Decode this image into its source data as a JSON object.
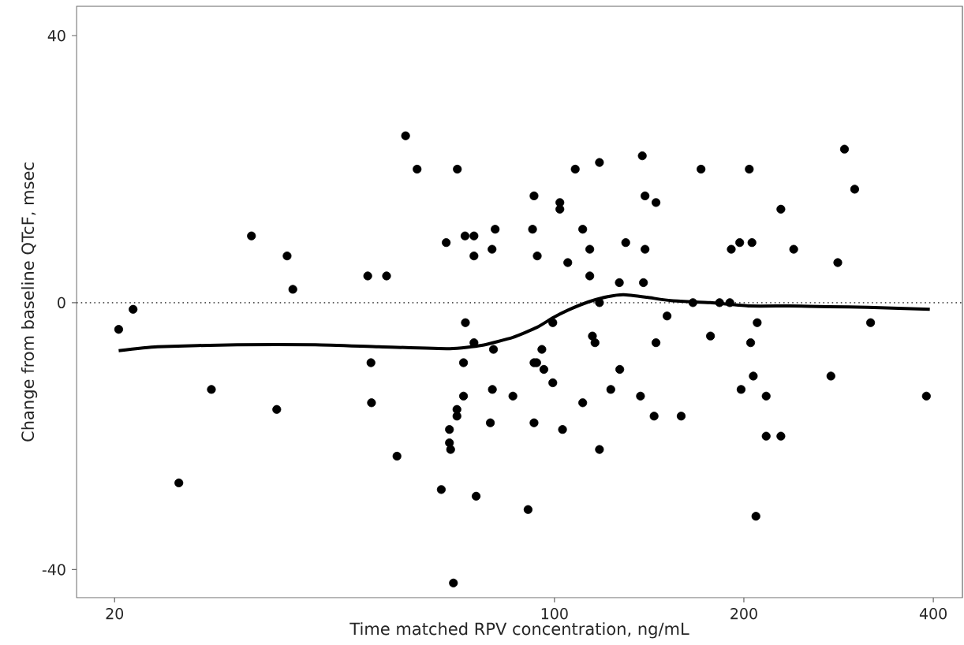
{
  "chart_data": {
    "type": "scatter",
    "xlabel": "Time matched RPV concentration, ng/mL",
    "ylabel": "Change from baseline QTcF, msec",
    "log": "x",
    "xlim": [
      17.4,
      445
    ],
    "ylim": [
      -44.2,
      44.4
    ],
    "xticks": [
      20,
      100,
      200,
      400
    ],
    "yticks": [
      -40,
      0,
      40
    ],
    "grid": false,
    "series": [
      {
        "color": "#000000",
        "marker": "circle",
        "x": [
          20.3,
          21.4,
          25.3,
          28.5,
          33.0,
          36.2,
          37.6,
          38.4,
          50.5,
          54.1,
          51.1,
          51.2,
          56.2,
          58.0,
          60.5,
          70.1,
          67.3,
          72.1,
          74.5,
          74.5,
          80.5,
          79.6,
          92.8,
          92.3,
          93.9,
          102.0,
          102.0,
          107.9,
          110.9,
          113.8,
          105.0,
          113.8,
          117.9,
          129.8,
          126.8,
          137.9,
          139.3,
          139.3,
          138.5,
          117.9,
          72.2,
          99.4,
          74.5,
          80.0,
          95.5,
          114.9,
          116.0,
          71.7,
          92.8,
          93.7,
          96.2,
          99.4,
          127.0,
          79.7,
          85.9,
          71.7,
          70.0,
          70.0,
          68.1,
          68.1,
          68.4,
          79.1,
          92.8,
          103.0,
          110.9,
          122.9,
          137.0,
          117.9,
          66.1,
          75.1,
          90.8,
          69.1,
          145.0,
          171,
          204,
          289,
          300,
          229,
          191,
          197,
          206,
          240,
          282,
          166,
          183,
          190,
          151,
          210,
          318,
          145.0,
          177,
          205,
          207,
          275,
          198,
          217,
          390,
          144.0,
          159,
          217,
          229,
          209
        ],
        "values": [
          -4,
          -1,
          -27,
          -13,
          10,
          -16,
          7,
          2,
          4,
          4,
          -9,
          -15,
          -23,
          25,
          20,
          20,
          9,
          10,
          10,
          7,
          11,
          8,
          16,
          11,
          7,
          15,
          14,
          20,
          11,
          8,
          6,
          4,
          21,
          9,
          3,
          22,
          16,
          8,
          3,
          0,
          -3,
          -3,
          -6,
          -7,
          -7,
          -5,
          -6,
          -9,
          -9,
          -9,
          -10,
          -12,
          -10,
          -13,
          -14,
          -14,
          -16,
          -17,
          -19,
          -21,
          -22,
          -18,
          -18,
          -19,
          -15,
          -13,
          -14,
          -22,
          -28,
          -29,
          -31,
          -42,
          15,
          20,
          20,
          23,
          17,
          14,
          8,
          9,
          9,
          8,
          6,
          0,
          0,
          0,
          -2,
          -3,
          -3,
          -6,
          -5,
          -6,
          -11,
          -11,
          -13,
          -14,
          -14,
          -17,
          -17,
          -20,
          -20,
          -32
        ]
      },
      {
        "type": "line",
        "color": "#000000",
        "marker": "none",
        "line_style": "solid",
        "x": [
          20.3,
          23.4,
          31.3,
          41.7,
          52.6,
          68.2,
          76.6,
          85.9,
          93.8,
          99.3,
          105.2,
          113.1,
          121.5,
          128.8,
          140.4,
          153.1,
          176.9,
          204.3,
          236,
          273,
          315,
          395
        ],
        "values": [
          -7.2,
          -6.6,
          -6.3,
          -6.3,
          -6.6,
          -6.9,
          -6.4,
          -5.2,
          -3.7,
          -2.3,
          -1.1,
          0.1,
          0.9,
          1.2,
          0.8,
          0.3,
          0,
          -0.5,
          -0.5,
          -0.6,
          -0.7,
          -1.0
        ]
      }
    ],
    "ref_lines": [
      {
        "axis": "y",
        "value": 0,
        "line_style": "dotted",
        "color": "#555555"
      }
    ]
  }
}
